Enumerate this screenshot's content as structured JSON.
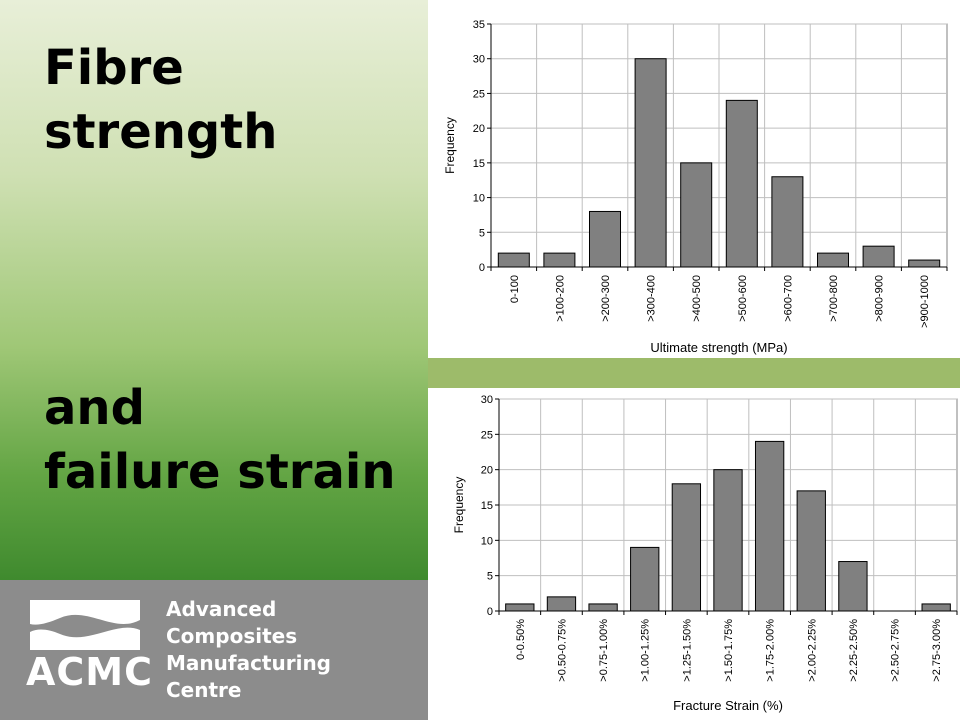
{
  "slide": {
    "title_top": [
      "Fibre",
      "strength"
    ],
    "title_bottom": [
      "and",
      "failure strain"
    ]
  },
  "logo": {
    "acronym": "ACMC",
    "lines": [
      "Advanced",
      "Composites",
      "Manufacturing",
      "Centre"
    ]
  },
  "colors": {
    "bar_fill": "#808080",
    "bar_stroke": "#000000",
    "grid": "#bfbfbf",
    "logo_bg": "#8c8c8c",
    "green_strip": "#9dbb6a"
  },
  "chart_data": [
    {
      "type": "bar",
      "categories": [
        "0-100",
        ">100-200",
        ">200-300",
        ">300-400",
        ">400-500",
        ">500-600",
        ">600-700",
        ">700-800",
        ">800-900",
        ">900-1000"
      ],
      "values": [
        2,
        2,
        8,
        30,
        15,
        24,
        13,
        2,
        3,
        1
      ],
      "xlabel": "Ultimate strength (MPa)",
      "ylabel": "Frequency",
      "ylim": [
        0,
        35
      ],
      "yticks": [
        0,
        5,
        10,
        15,
        20,
        25,
        30,
        35
      ],
      "grid": true,
      "legend": false
    },
    {
      "type": "bar",
      "categories": [
        "0-0.50%",
        ">0.50-0.75%",
        ">0.75-1.00%",
        ">1.00-1.25%",
        ">1.25-1.50%",
        ">1.50-1.75%",
        ">1.75-2.00%",
        ">2.00-2.25%",
        ">2.25-2.50%",
        ">2.50-2.75%",
        ">2.75-3.00%"
      ],
      "values": [
        1,
        2,
        1,
        9,
        18,
        20,
        24,
        17,
        7,
        0,
        1
      ],
      "xlabel": "Fracture Strain (%)",
      "ylabel": "Frequency",
      "ylim": [
        0,
        30
      ],
      "yticks": [
        0,
        5,
        10,
        15,
        20,
        25,
        30
      ],
      "grid": true,
      "legend": false
    }
  ]
}
